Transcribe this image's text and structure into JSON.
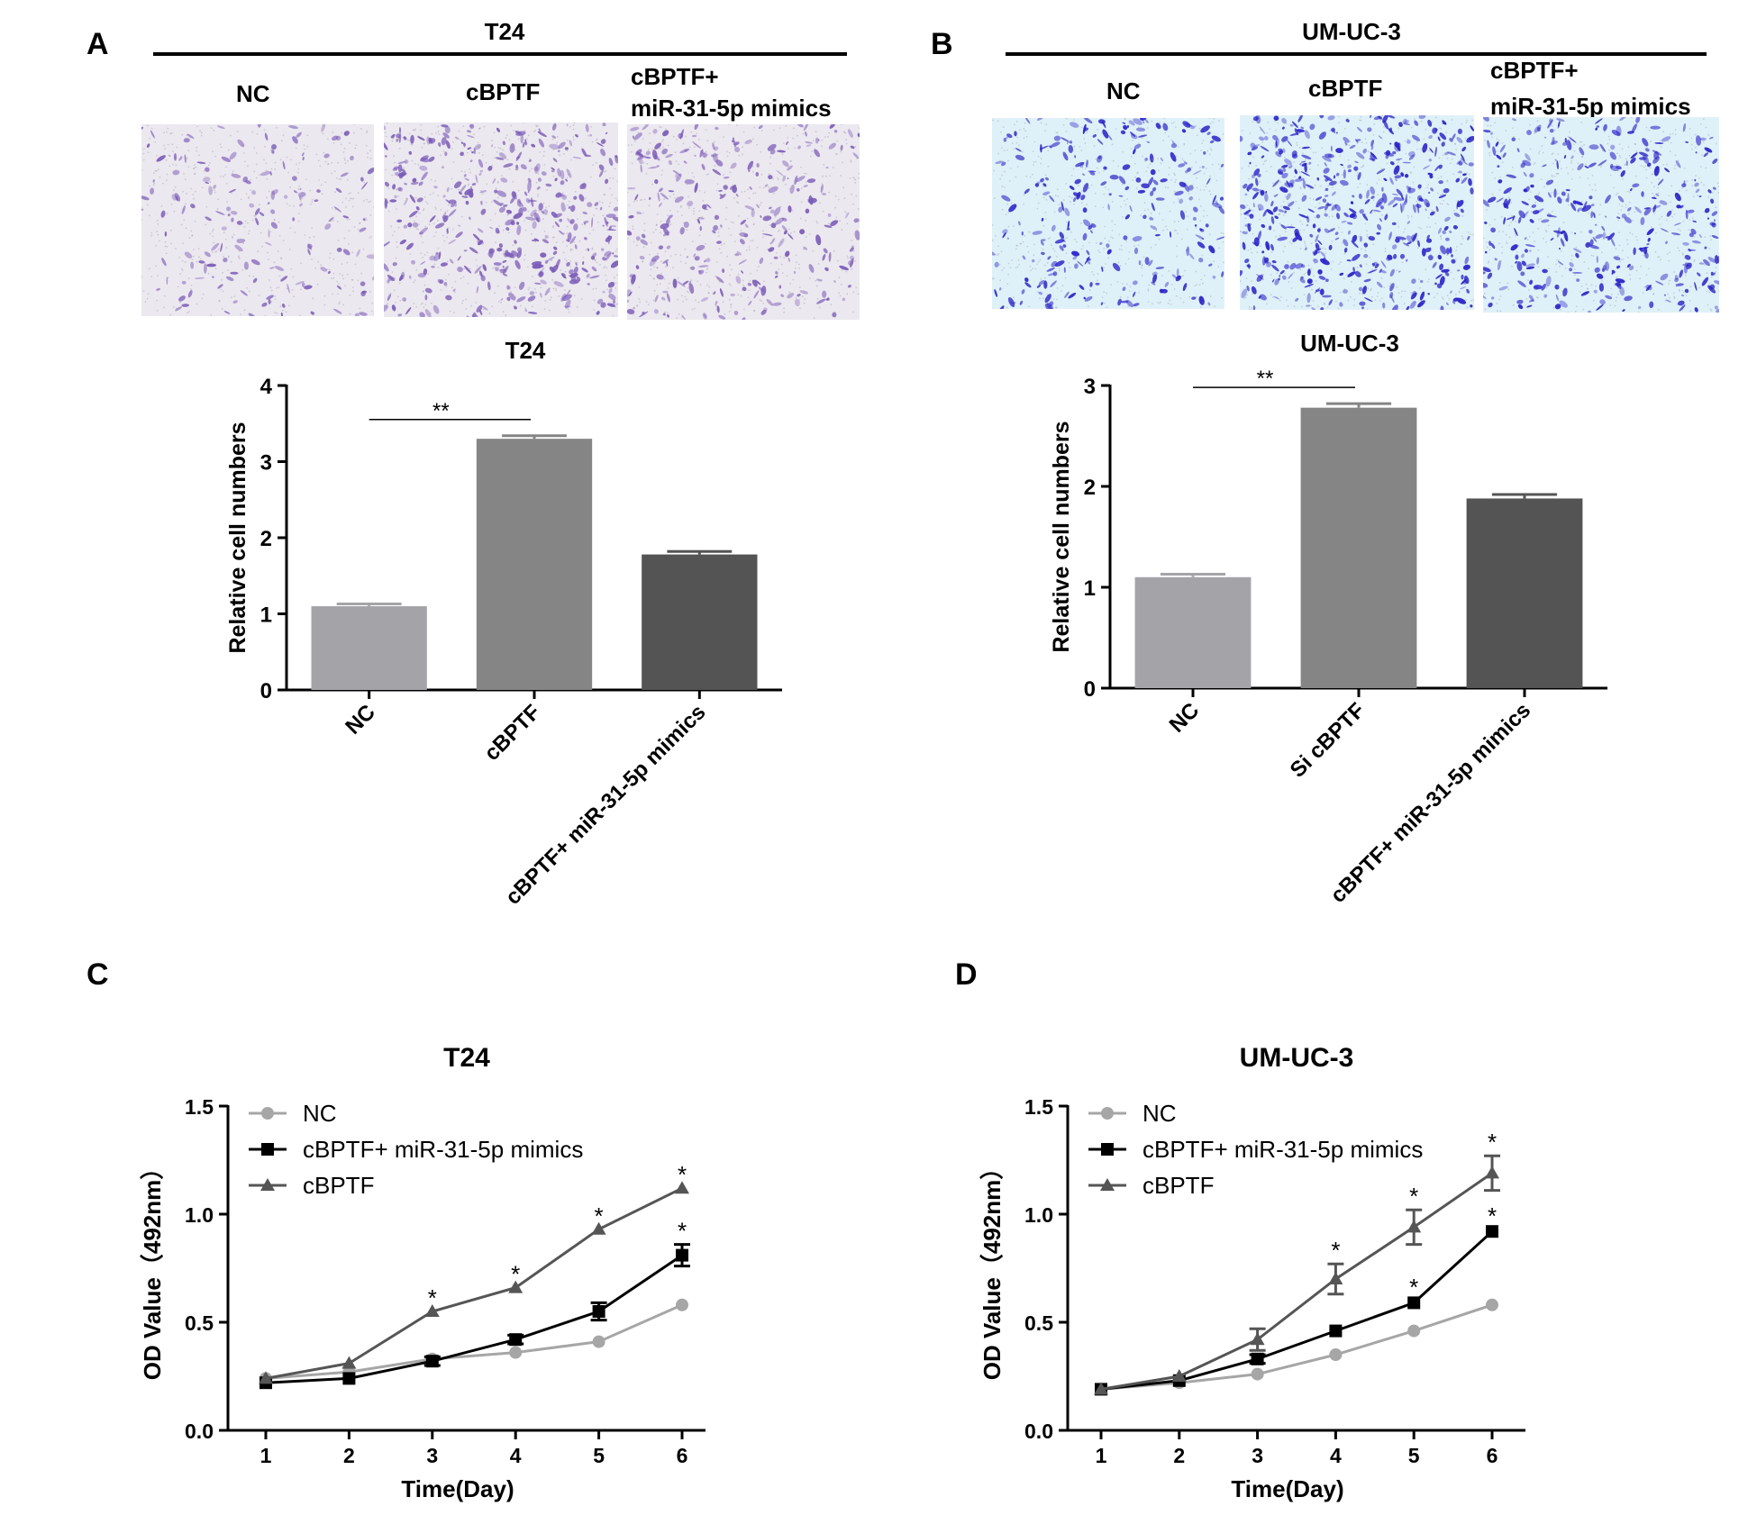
{
  "panels": {
    "A": {
      "letter": "A",
      "cell_line": "T24",
      "image_labels": [
        "NC",
        "cBPTF",
        "cBPTF+",
        "miR-31-5p mimics"
      ],
      "stain_color": "#7a5cb8",
      "bg_color": "#ece8ef"
    },
    "B": {
      "letter": "B",
      "cell_line": "UM-UC-3",
      "image_labels": [
        "NC",
        "cBPTF",
        "cBPTF+",
        "miR-31-5p mimics"
      ],
      "stain_color": "#2a22c8",
      "bg_color": "#dff1f8"
    },
    "C": {
      "letter": "C"
    },
    "D": {
      "letter": "D"
    }
  },
  "chart_data": [
    {
      "id": "A",
      "type": "bar",
      "title": "T24",
      "ylabel": "Relative cell numbers",
      "xlabel": "",
      "categories": [
        "NC",
        "cBPTF",
        "cBPTF+ miR-31-5p mimics"
      ],
      "values": [
        1.1,
        3.3,
        1.78
      ],
      "errors": [
        0.03,
        0.04,
        0.04
      ],
      "colors": [
        "#a4a4a8",
        "#858585",
        "#545454"
      ],
      "ylim": [
        0,
        4
      ],
      "yticks": [
        0,
        1,
        2,
        3,
        4
      ],
      "significance": {
        "from": 0,
        "to": 1,
        "label": "**"
      }
    },
    {
      "id": "B",
      "type": "bar",
      "title": "UM-UC-3",
      "ylabel": "Relative cell numbers",
      "xlabel": "",
      "categories": [
        "NC",
        "Si cBPTF",
        "cBPTF+ miR-31-5p mimics"
      ],
      "values": [
        1.1,
        2.78,
        1.88
      ],
      "errors": [
        0.03,
        0.04,
        0.04
      ],
      "colors": [
        "#a4a4a8",
        "#858585",
        "#545454"
      ],
      "ylim": [
        0,
        3
      ],
      "yticks": [
        0,
        1,
        2,
        3
      ],
      "significance": {
        "from": 0,
        "to": 1,
        "label": "**"
      }
    },
    {
      "id": "C",
      "type": "line",
      "title": "T24",
      "xlabel": "Time(Day)",
      "ylabel": "OD Value（492nm）",
      "x": [
        1,
        2,
        3,
        4,
        5,
        6
      ],
      "xlim": [
        1,
        6
      ],
      "ylim": [
        0,
        1.5
      ],
      "yticks": [
        "0.0",
        "0.5",
        "1.0",
        "1.5"
      ],
      "legend": "top-left",
      "series": [
        {
          "name": "NC",
          "marker": "circle",
          "color": "#a6a6a6",
          "values": [
            0.24,
            0.27,
            0.33,
            0.36,
            0.41,
            0.58
          ],
          "errors": [
            0.01,
            0.01,
            0.01,
            0.01,
            0.01,
            0.01
          ]
        },
        {
          "name": "cBPTF+ miR-31-5p mimics",
          "marker": "square",
          "color": "#000000",
          "values": [
            0.22,
            0.24,
            0.32,
            0.42,
            0.55,
            0.81
          ],
          "errors": [
            0.01,
            0.01,
            0.02,
            0.02,
            0.04,
            0.05
          ]
        },
        {
          "name": "cBPTF",
          "marker": "triangle",
          "color": "#555555",
          "values": [
            0.24,
            0.31,
            0.55,
            0.66,
            0.93,
            1.12
          ],
          "errors": [
            0.01,
            0.01,
            0.01,
            0.01,
            0.01,
            0.01
          ]
        }
      ],
      "annotations": [
        {
          "x": 3,
          "y": 0.55,
          "label": "*"
        },
        {
          "x": 4,
          "y": 0.66,
          "label": "*"
        },
        {
          "x": 5,
          "y": 0.93,
          "label": "*"
        },
        {
          "x": 6,
          "y": 1.12,
          "label": "*"
        },
        {
          "x": 6,
          "y": 0.86,
          "label": "*"
        }
      ]
    },
    {
      "id": "D",
      "type": "line",
      "title": "UM-UC-3",
      "xlabel": "Time(Day)",
      "ylabel": "OD Value（492nm）",
      "x": [
        1,
        2,
        3,
        4,
        5,
        6
      ],
      "xlim": [
        1,
        6
      ],
      "ylim": [
        0,
        1.5
      ],
      "yticks": [
        "0.0",
        "0.5",
        "1.0",
        "1.5"
      ],
      "legend": "top-left",
      "series": [
        {
          "name": "NC",
          "marker": "circle",
          "color": "#a6a6a6",
          "values": [
            0.19,
            0.22,
            0.26,
            0.35,
            0.46,
            0.58
          ],
          "errors": [
            0.01,
            0.01,
            0.01,
            0.01,
            0.01,
            0.01
          ]
        },
        {
          "name": "cBPTF+ miR-31-5p mimics",
          "marker": "square",
          "color": "#000000",
          "values": [
            0.19,
            0.23,
            0.33,
            0.46,
            0.59,
            0.92
          ],
          "errors": [
            0.01,
            0.01,
            0.02,
            0.01,
            0.01,
            0.01
          ]
        },
        {
          "name": "cBPTF",
          "marker": "triangle",
          "color": "#555555",
          "values": [
            0.19,
            0.25,
            0.42,
            0.7,
            0.94,
            1.19
          ],
          "errors": [
            0.01,
            0.01,
            0.05,
            0.07,
            0.08,
            0.08
          ]
        }
      ],
      "annotations": [
        {
          "x": 4,
          "y": 0.77,
          "label": "*"
        },
        {
          "x": 5,
          "y": 1.02,
          "label": "*"
        },
        {
          "x": 5,
          "y": 0.6,
          "label": "*"
        },
        {
          "x": 6,
          "y": 1.27,
          "label": "*"
        },
        {
          "x": 6,
          "y": 0.93,
          "label": "*"
        }
      ]
    }
  ]
}
